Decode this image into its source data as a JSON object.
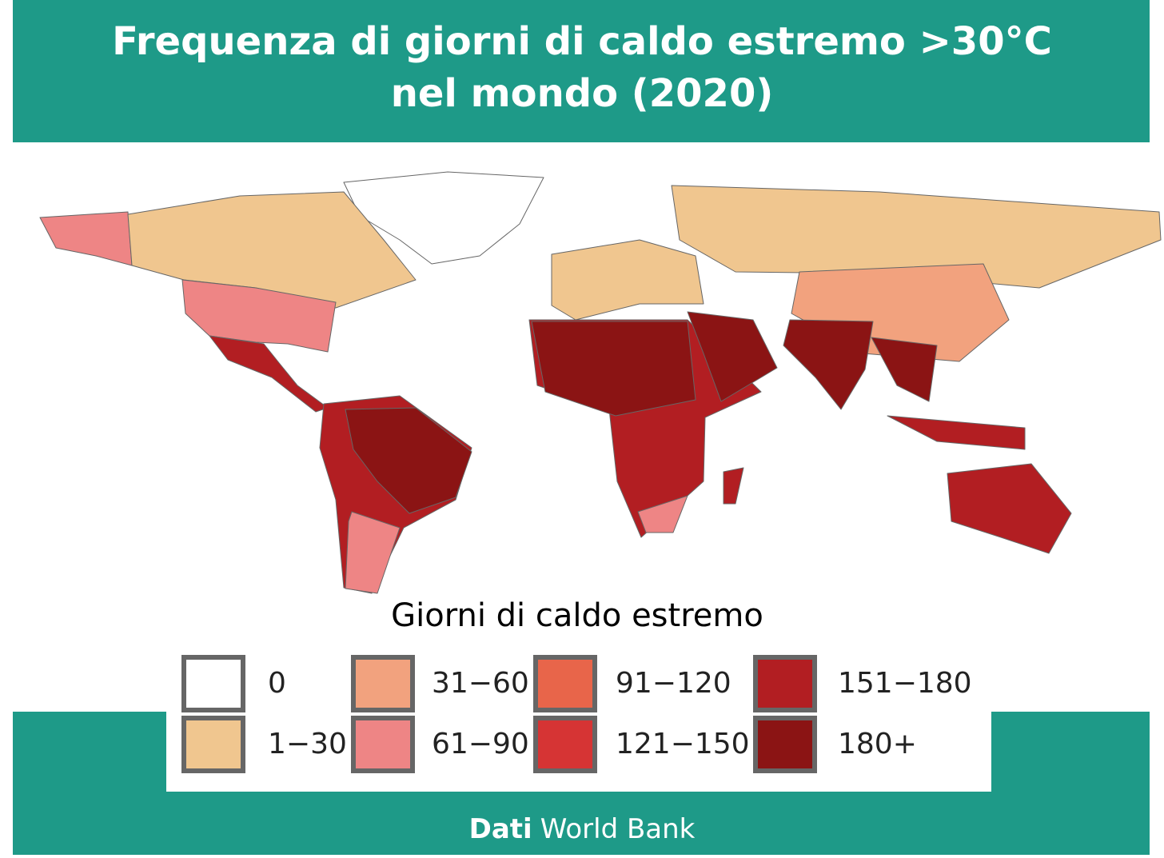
{
  "header": {
    "title_line1": "Frequenza di giorni di caldo estremo >30°C",
    "title_line2": "nel mondo (2020)"
  },
  "legend": {
    "title": "Giorni di caldo estremo",
    "items": [
      {
        "label": "0",
        "color": "#ffffff"
      },
      {
        "label": "1−30",
        "color": "#f0c68f"
      },
      {
        "label": "31−60",
        "color": "#f2a27e"
      },
      {
        "label": "61−90",
        "color": "#ee8585"
      },
      {
        "label": "91−120",
        "color": "#e8654a"
      },
      {
        "label": "121−150",
        "color": "#d63434"
      },
      {
        "label": "151−180",
        "color": "#b21e22"
      },
      {
        "label": "180+",
        "color": "#8b1414"
      }
    ]
  },
  "source": {
    "prefix": "Dati",
    "name": "World Bank"
  }
}
